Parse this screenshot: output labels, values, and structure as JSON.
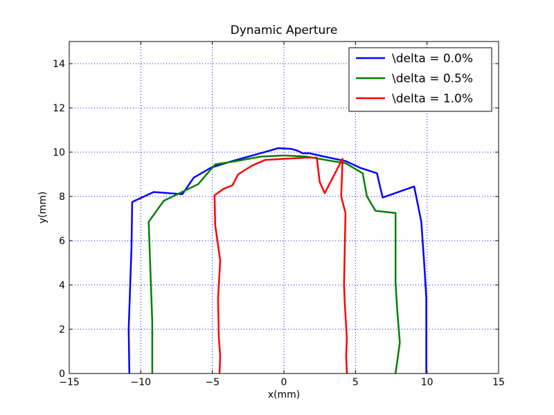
{
  "chart_data": {
    "type": "line",
    "title": "Dynamic Aperture",
    "xlabel": "x(mm)",
    "ylabel": "y(mm)",
    "xlim": [
      -15,
      15
    ],
    "ylim": [
      0,
      15
    ],
    "xticks": [
      -15,
      -10,
      -5,
      0,
      5,
      10,
      15
    ],
    "yticks": [
      0,
      2,
      4,
      6,
      8,
      10,
      12,
      14
    ],
    "xtick_labels": [
      "−15",
      "−10",
      "−5",
      "0",
      "5",
      "10",
      "15"
    ],
    "ytick_labels": [
      "0",
      "2",
      "4",
      "6",
      "8",
      "10",
      "12",
      "14"
    ],
    "grid": true,
    "legend_position": "top-right",
    "series": [
      {
        "name": "\\delta = 0.0%",
        "color": "#0000ff",
        "x": [
          -10.8,
          -10.85,
          -10.65,
          -10.6,
          -9.1,
          -7.1,
          -6.3,
          -5.1,
          -3.6,
          -2.2,
          -1.1,
          -0.4,
          0.5,
          0.9,
          1.3,
          1.8,
          2.8,
          4.3,
          5.3,
          6.5,
          6.9,
          9.1,
          9.6,
          9.8,
          9.95,
          9.95
        ],
        "y": [
          0,
          2.0,
          5.7,
          7.75,
          8.2,
          8.1,
          8.85,
          9.3,
          9.6,
          9.85,
          10.05,
          10.18,
          10.15,
          10.08,
          9.95,
          9.95,
          9.8,
          9.6,
          9.3,
          9.05,
          7.95,
          8.45,
          6.85,
          5.0,
          3.4,
          0
        ]
      },
      {
        "name": "\\delta = 0.5%",
        "color": "#008000",
        "x": [
          -9.2,
          -9.2,
          -9.35,
          -9.45,
          -8.4,
          -6.0,
          -4.8,
          -3.3,
          -1.6,
          0.0,
          1.6,
          2.9,
          4.3,
          5.5,
          5.8,
          6.4,
          7.8,
          7.8,
          7.9,
          8.1,
          7.8
        ],
        "y": [
          0,
          2.3,
          5.0,
          6.85,
          7.8,
          8.55,
          9.45,
          9.6,
          9.8,
          9.85,
          9.8,
          9.65,
          9.5,
          9.05,
          8.0,
          7.35,
          7.25,
          4.1,
          3.0,
          1.4,
          0
        ]
      },
      {
        "name": "\\delta = 1.0%",
        "color": "#ff0000",
        "x": [
          -4.5,
          -4.45,
          -4.55,
          -4.6,
          -4.45,
          -4.8,
          -4.85,
          -4.2,
          -3.6,
          -3.2,
          -2.2,
          -1.3,
          0.0,
          1.5,
          2.3,
          2.5,
          2.85,
          4.1,
          4.0,
          4.3,
          4.2,
          4.25,
          4.4,
          4.35,
          4.4
        ],
        "y": [
          0,
          0.8,
          1.6,
          3.4,
          5.1,
          6.7,
          8.05,
          8.35,
          8.5,
          9.0,
          9.4,
          9.65,
          9.7,
          9.75,
          9.75,
          8.65,
          8.15,
          9.7,
          8.0,
          7.25,
          4.0,
          3.2,
          1.6,
          0.8,
          0
        ]
      }
    ]
  }
}
